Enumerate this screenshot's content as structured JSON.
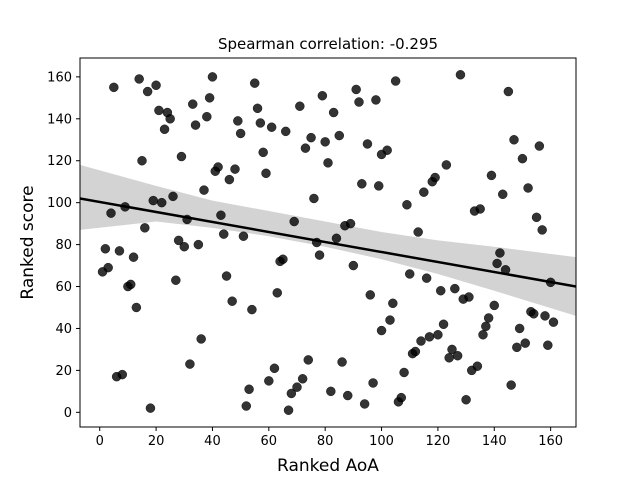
{
  "chart_data": {
    "type": "scatter",
    "title": "Spearman correlation: -0.295",
    "xlabel": "Ranked AoA",
    "ylabel": "Ranked score",
    "xlim": [
      -7,
      169
    ],
    "ylim": [
      -7,
      169
    ],
    "xticks": [
      0,
      20,
      40,
      60,
      80,
      100,
      120,
      140,
      160
    ],
    "yticks": [
      0,
      20,
      40,
      60,
      80,
      100,
      120,
      140,
      160
    ],
    "grid": false,
    "marker_color": "#000000",
    "marker_alpha": 0.8,
    "regression": {
      "x0": -7,
      "y0": 102,
      "x1": 169,
      "y1": 60,
      "color": "#000000"
    },
    "confidence_band": {
      "color": "#d3d3d3",
      "x": [
        -7,
        20,
        40,
        60,
        80,
        100,
        120,
        140,
        169
      ],
      "upper": [
        118,
        108,
        101,
        96,
        91,
        86,
        82,
        79,
        74
      ],
      "lower": [
        87,
        91,
        88,
        84,
        79,
        73,
        66,
        58,
        46
      ]
    },
    "points": [
      [
        1,
        67
      ],
      [
        2,
        78
      ],
      [
        3,
        69
      ],
      [
        4,
        95
      ],
      [
        5,
        155
      ],
      [
        6,
        17
      ],
      [
        7,
        77
      ],
      [
        8,
        18
      ],
      [
        9,
        98
      ],
      [
        10,
        60
      ],
      [
        11,
        61
      ],
      [
        12,
        74
      ],
      [
        13,
        50
      ],
      [
        14,
        159
      ],
      [
        15,
        120
      ],
      [
        16,
        88
      ],
      [
        17,
        153
      ],
      [
        18,
        2
      ],
      [
        19,
        101
      ],
      [
        20,
        156
      ],
      [
        21,
        144
      ],
      [
        22,
        100
      ],
      [
        23,
        135
      ],
      [
        24,
        143
      ],
      [
        25,
        140
      ],
      [
        26,
        103
      ],
      [
        27,
        63
      ],
      [
        28,
        82
      ],
      [
        29,
        122
      ],
      [
        30,
        79
      ],
      [
        31,
        92
      ],
      [
        32,
        23
      ],
      [
        33,
        147
      ],
      [
        34,
        137
      ],
      [
        35,
        80
      ],
      [
        36,
        35
      ],
      [
        37,
        106
      ],
      [
        38,
        141
      ],
      [
        39,
        150
      ],
      [
        40,
        160
      ],
      [
        41,
        115
      ],
      [
        42,
        117
      ],
      [
        43,
        94
      ],
      [
        44,
        85
      ],
      [
        45,
        65
      ],
      [
        46,
        111
      ],
      [
        47,
        53
      ],
      [
        48,
        116
      ],
      [
        49,
        139
      ],
      [
        50,
        133
      ],
      [
        51,
        84
      ],
      [
        52,
        3
      ],
      [
        53,
        11
      ],
      [
        54,
        49
      ],
      [
        55,
        157
      ],
      [
        56,
        145
      ],
      [
        57,
        138
      ],
      [
        58,
        124
      ],
      [
        59,
        114
      ],
      [
        60,
        15
      ],
      [
        61,
        136
      ],
      [
        62,
        21
      ],
      [
        63,
        57
      ],
      [
        64,
        72
      ],
      [
        65,
        73
      ],
      [
        66,
        134
      ],
      [
        67,
        1
      ],
      [
        68,
        9
      ],
      [
        69,
        91
      ],
      [
        70,
        12
      ],
      [
        71,
        146
      ],
      [
        72,
        16
      ],
      [
        73,
        126
      ],
      [
        74,
        25
      ],
      [
        75,
        131
      ],
      [
        76,
        102
      ],
      [
        77,
        81
      ],
      [
        78,
        75
      ],
      [
        79,
        151
      ],
      [
        80,
        129
      ],
      [
        81,
        119
      ],
      [
        82,
        10
      ],
      [
        83,
        143
      ],
      [
        84,
        83
      ],
      [
        85,
        132
      ],
      [
        86,
        24
      ],
      [
        87,
        89
      ],
      [
        88,
        8
      ],
      [
        89,
        90
      ],
      [
        90,
        70
      ],
      [
        91,
        154
      ],
      [
        92,
        148
      ],
      [
        93,
        109
      ],
      [
        94,
        4
      ],
      [
        95,
        128
      ],
      [
        96,
        56
      ],
      [
        97,
        14
      ],
      [
        98,
        149
      ],
      [
        99,
        108
      ],
      [
        100,
        123
      ],
      [
        100,
        39
      ],
      [
        102,
        125
      ],
      [
        103,
        44
      ],
      [
        104,
        52
      ],
      [
        105,
        158
      ],
      [
        106,
        5
      ],
      [
        107,
        7
      ],
      [
        108,
        19
      ],
      [
        109,
        99
      ],
      [
        110,
        66
      ],
      [
        111,
        28
      ],
      [
        112,
        29
      ],
      [
        113,
        86
      ],
      [
        114,
        34
      ],
      [
        115,
        105
      ],
      [
        116,
        64
      ],
      [
        117,
        36
      ],
      [
        118,
        110
      ],
      [
        119,
        112
      ],
      [
        120,
        37
      ],
      [
        121,
        58
      ],
      [
        122,
        42
      ],
      [
        123,
        118
      ],
      [
        124,
        26
      ],
      [
        125,
        30
      ],
      [
        126,
        59
      ],
      [
        127,
        27
      ],
      [
        128,
        161
      ],
      [
        129,
        54
      ],
      [
        130,
        6
      ],
      [
        131,
        55
      ],
      [
        132,
        20
      ],
      [
        133,
        96
      ],
      [
        134,
        22
      ],
      [
        135,
        97
      ],
      [
        136,
        37
      ],
      [
        137,
        41
      ],
      [
        138,
        45
      ],
      [
        139,
        113
      ],
      [
        140,
        51
      ],
      [
        141,
        71
      ],
      [
        142,
        76
      ],
      [
        143,
        104
      ],
      [
        144,
        68
      ],
      [
        145,
        153
      ],
      [
        146,
        13
      ],
      [
        147,
        130
      ],
      [
        148,
        31
      ],
      [
        149,
        40
      ],
      [
        150,
        121
      ],
      [
        151,
        33
      ],
      [
        152,
        107
      ],
      [
        153,
        48
      ],
      [
        154,
        47
      ],
      [
        155,
        93
      ],
      [
        156,
        127
      ],
      [
        157,
        87
      ],
      [
        158,
        46
      ],
      [
        159,
        32
      ],
      [
        160,
        62
      ],
      [
        161,
        43
      ]
    ]
  }
}
